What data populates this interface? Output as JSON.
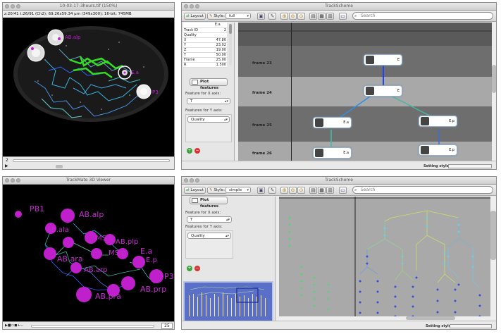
{
  "image_window": {
    "title": "10-03-17-3hours.tif (150%)",
    "info": "z:20/41 t:26/91 (Ch2); 69.26x59.34 µm (349x300); 16-bit; 745MB",
    "labels": {
      "ab_alp": "AB.alp",
      "ea": "E.a",
      "p3": "P3"
    },
    "z_value": "2"
  },
  "viewer3d": {
    "title": "TrackMate 3D Viewer",
    "frame_value": "25",
    "labels": {
      "pb1": "PB1",
      "ab_alp": "AB.alp",
      "ab_ala": "AB.ala",
      "ms_a": "MS.a",
      "ab_plp": "AB.plp",
      "ab_ara": "AB.ara",
      "ms_p": "MS.p",
      "e_a": "E.a",
      "e_p": "E.p",
      "ab_arp": "AB.arp",
      "ab_pra": "AB.pra",
      "ab_prp": "AB.prp",
      "p3": "P3"
    }
  },
  "trackscheme_top": {
    "title": "TrackScheme",
    "toolbar": {
      "layout": "Layout",
      "style_label": "Style:",
      "style_value": "full",
      "search_placeholder": "Search"
    },
    "features": {
      "header": "E.a",
      "rows": [
        {
          "name": "Track ID",
          "value": "2"
        },
        {
          "name": "Quality",
          "value": ""
        },
        {
          "name": "X",
          "value": "47.80"
        },
        {
          "name": "Y",
          "value": "23.02"
        },
        {
          "name": "Z",
          "value": "19.00"
        },
        {
          "name": "T",
          "value": "50.00"
        },
        {
          "name": "Frame",
          "value": "25.00"
        },
        {
          "name": "R",
          "value": "1.500"
        }
      ]
    },
    "plot_features": "Plot features",
    "x_axis_label": "Feature for X axis:",
    "x_axis_value": "T",
    "y_axis_label": "Features for Y axis:",
    "y_axis_value": "Quality",
    "frames": [
      "frame 23",
      "frame 24",
      "frame 25",
      "frame 26"
    ],
    "nodes": {
      "n23": "E",
      "n24": "E",
      "n25a": "E.a",
      "n25b": "E.p",
      "n26a": "E.a",
      "n26b": "E.p"
    },
    "status": "Setting style."
  },
  "trackscheme_bottom": {
    "title": "TrackScheme",
    "toolbar": {
      "layout": "Layout",
      "style_label": "Style:",
      "style_value": "simple",
      "search_placeholder": "Search"
    },
    "plot_features": "Plot features",
    "x_axis_label": "Feature for X axis:",
    "x_axis_value": "T",
    "y_axis_label": "Features for Y axis:",
    "y_axis_value": "Quality",
    "status": "Setting style."
  },
  "colors": {
    "accent_green": "#33dd22",
    "spot_magenta": "#c020cc",
    "link_blue": "#3355ff"
  }
}
